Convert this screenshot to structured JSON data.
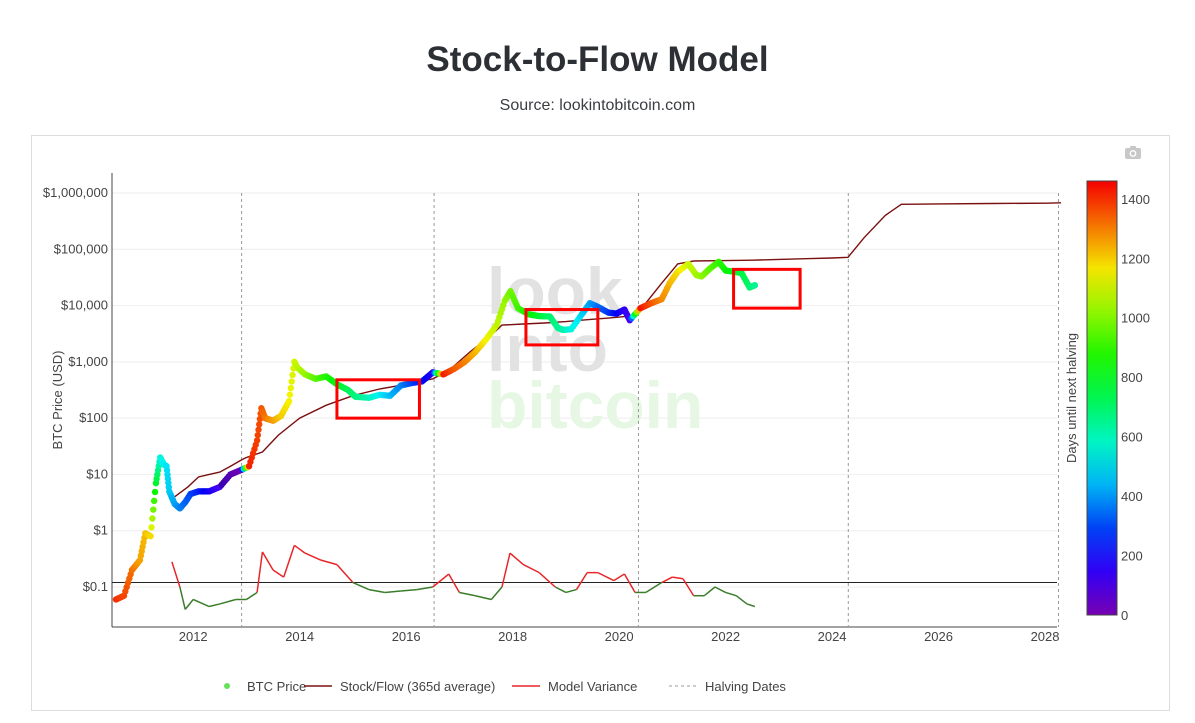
{
  "header": {
    "title": "Stock-to-Flow Model",
    "subtitle": "Source: lookintobitcoin.com"
  },
  "toolbar": {
    "camera_icon": "camera-icon"
  },
  "watermark": {
    "line1": "look",
    "line2": "into",
    "line3": "bitcoin"
  },
  "colors": {
    "btc_price": "#66e05a",
    "stock_flow": "#7a1010",
    "model_variance_high": "#e8262a",
    "model_variance_low": "#3a7d2a",
    "halving": "#999999",
    "highlight_box": "#ff0000"
  },
  "chart_data": {
    "type": "scatter",
    "ylabel": "BTC Price (USD)",
    "colorbar_label": "Days until next halving",
    "yscale": "log",
    "x_ticks": [
      "2012",
      "2014",
      "2016",
      "2018",
      "2020",
      "2022",
      "2024",
      "2026",
      "2028"
    ],
    "y_ticks": [
      "$0.1",
      "$1",
      "$10",
      "$100",
      "$1,000",
      "$10,000",
      "$100,000",
      "$1,000,000"
    ],
    "colorbar_ticks": [
      "0",
      "200",
      "400",
      "600",
      "800",
      "1000",
      "1200",
      "1400"
    ],
    "colorbar_range": [
      0,
      1460
    ],
    "halving_dates": [
      "2012-11-28",
      "2016-07-09",
      "2020-05-11",
      "2024-04-20",
      "2028-04-01"
    ],
    "legend": [
      {
        "label": "BTC Price",
        "style": "marker"
      },
      {
        "label": "Stock/Flow (365d average)",
        "style": "line"
      },
      {
        "label": "Model Variance",
        "style": "line"
      },
      {
        "label": "Halving Dates",
        "style": "dash"
      }
    ],
    "reference_line": {
      "y": 0.12
    },
    "series": [
      {
        "name": "BTC Price",
        "x": [
          2010.55,
          2010.7,
          2010.85,
          2011.0,
          2011.1,
          2011.2,
          2011.3,
          2011.38,
          2011.45,
          2011.5,
          2011.55,
          2011.65,
          2011.75,
          2011.85,
          2011.95,
          2012.1,
          2012.3,
          2012.5,
          2012.7,
          2012.9,
          2013.05,
          2013.2,
          2013.28,
          2013.35,
          2013.5,
          2013.65,
          2013.8,
          2013.9,
          2013.95,
          2014.1,
          2014.3,
          2014.5,
          2014.7,
          2014.9,
          2015.05,
          2015.3,
          2015.5,
          2015.7,
          2015.9,
          2016.1,
          2016.3,
          2016.5,
          2016.7,
          2016.9,
          2017.1,
          2017.3,
          2017.5,
          2017.7,
          2017.85,
          2017.96,
          2018.1,
          2018.3,
          2018.5,
          2018.7,
          2018.85,
          2018.95,
          2019.1,
          2019.3,
          2019.45,
          2019.6,
          2019.8,
          2019.95,
          2020.1,
          2020.2,
          2020.4,
          2020.6,
          2020.8,
          2020.95,
          2021.1,
          2021.3,
          2021.45,
          2021.55,
          2021.7,
          2021.87,
          2022.0,
          2022.15,
          2022.3,
          2022.45,
          2022.55
        ],
        "y": [
          0.06,
          0.07,
          0.2,
          0.3,
          0.9,
          0.8,
          7,
          20,
          15,
          14,
          5,
          3,
          2.5,
          3.2,
          4.5,
          5,
          5,
          6,
          10,
          12,
          14,
          40,
          150,
          100,
          90,
          110,
          200,
          1000,
          800,
          600,
          500,
          550,
          400,
          320,
          240,
          230,
          260,
          250,
          380,
          420,
          450,
          650,
          600,
          750,
          1000,
          1500,
          2500,
          4500,
          12000,
          18000,
          9000,
          7000,
          6500,
          6400,
          4000,
          3700,
          3800,
          7000,
          11000,
          9500,
          7500,
          7200,
          8500,
          5500,
          9000,
          11000,
          13000,
          25000,
          40000,
          55000,
          35000,
          33000,
          45000,
          60000,
          42000,
          40000,
          38000,
          21000,
          23000
        ],
        "days_until_halving": [
          1400,
          1370,
          1320,
          1250,
          1220,
          1180,
          780,
          560,
          520,
          500,
          470,
          420,
          380,
          340,
          300,
          250,
          180,
          120,
          60,
          10,
          1420,
          1380,
          1350,
          1310,
          1260,
          1200,
          1150,
          1100,
          1080,
          1030,
          950,
          880,
          800,
          730,
          680,
          600,
          520,
          450,
          380,
          300,
          230,
          160,
          1430,
          1350,
          1300,
          1230,
          1150,
          1080,
          1030,
          980,
          920,
          850,
          780,
          700,
          650,
          620,
          550,
          480,
          420,
          350,
          280,
          220,
          150,
          120,
          1440,
          1360,
          1290,
          1230,
          1180,
          1100,
          1050,
          1020,
          960,
          900,
          850,
          800,
          750,
          700,
          650
        ]
      },
      {
        "name": "Stock/Flow (365d average)",
        "x": [
          2011.65,
          2011.9,
          2012.1,
          2012.3,
          2012.5,
          2012.7,
          2012.9,
          2013.0,
          2013.3,
          2013.6,
          2014.0,
          2014.5,
          2015.0,
          2015.5,
          2016.0,
          2016.5,
          2016.8,
          2017.2,
          2017.6,
          2017.8,
          2018.2,
          2018.6,
          2019.0,
          2019.4,
          2019.8,
          2020.2,
          2020.5,
          2020.8,
          2021.1,
          2021.4,
          2022.0,
          2022.5,
          2023.0,
          2023.5,
          2024.0,
          2024.3,
          2024.6,
          2025.0,
          2025.3,
          2026.0,
          2027.0,
          2028.0,
          2028.3
        ],
        "y": [
          4,
          6,
          9,
          10,
          11,
          14,
          18,
          20,
          25,
          50,
          100,
          170,
          250,
          330,
          400,
          500,
          700,
          1500,
          3000,
          4500,
          4700,
          4900,
          5200,
          5600,
          6000,
          6500,
          11000,
          25000,
          55000,
          62000,
          63000,
          64000,
          66000,
          68000,
          70000,
          72000,
          160000,
          400000,
          630000,
          640000,
          650000,
          660000,
          670000
        ]
      },
      {
        "name": "Model Variance",
        "x": [
          2011.6,
          2011.75,
          2011.85,
          2012.0,
          2012.3,
          2012.5,
          2012.8,
          2013.0,
          2013.2,
          2013.3,
          2013.5,
          2013.7,
          2013.9,
          2014.1,
          2014.4,
          2014.7,
          2015.0,
          2015.3,
          2015.6,
          2015.9,
          2016.2,
          2016.5,
          2016.8,
          2017.0,
          2017.3,
          2017.6,
          2017.8,
          2017.95,
          2018.2,
          2018.5,
          2018.8,
          2019.0,
          2019.2,
          2019.4,
          2019.6,
          2019.9,
          2020.1,
          2020.3,
          2020.5,
          2020.8,
          2021.0,
          2021.2,
          2021.4,
          2021.6,
          2021.8,
          2022.0,
          2022.2,
          2022.4,
          2022.55
        ],
        "y": [
          0.28,
          0.1,
          0.04,
          0.06,
          0.045,
          0.05,
          0.06,
          0.06,
          0.08,
          0.42,
          0.2,
          0.15,
          0.55,
          0.4,
          0.3,
          0.25,
          0.12,
          0.09,
          0.08,
          0.085,
          0.09,
          0.1,
          0.17,
          0.08,
          0.07,
          0.06,
          0.1,
          0.4,
          0.25,
          0.18,
          0.1,
          0.08,
          0.09,
          0.18,
          0.18,
          0.13,
          0.17,
          0.08,
          0.08,
          0.12,
          0.15,
          0.14,
          0.07,
          0.07,
          0.1,
          0.08,
          0.07,
          0.05,
          0.045
        ]
      }
    ],
    "annotations": [
      {
        "type": "rect",
        "x0": 2014.7,
        "x1": 2016.25,
        "y0": 100,
        "y1": 480
      },
      {
        "type": "rect",
        "x0": 2018.25,
        "x1": 2019.6,
        "y0": 2000,
        "y1": 8500
      },
      {
        "type": "rect",
        "x0": 2022.15,
        "x1": 2023.4,
        "y0": 9000,
        "y1": 44000
      }
    ]
  }
}
